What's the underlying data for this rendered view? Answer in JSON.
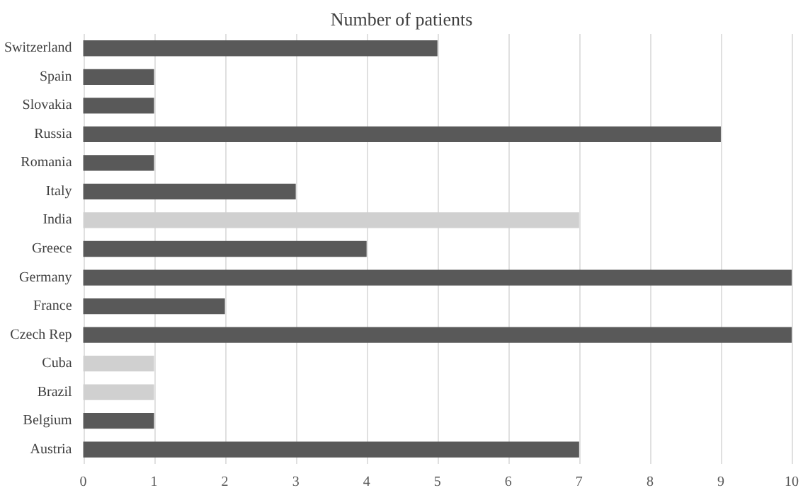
{
  "chart_data": {
    "type": "bar",
    "orientation": "horizontal",
    "title": "Number of patients",
    "categories": [
      "Switzerland",
      "Spain",
      "Slovakia",
      "Russia",
      "Romania",
      "Italy",
      "India",
      "Greece",
      "Germany",
      "France",
      "Czech Rep",
      "Cuba",
      "Brazil",
      "Belgium",
      "Austria"
    ],
    "values": [
      5,
      1,
      1,
      9,
      1,
      3,
      7,
      4,
      10,
      2,
      10,
      1,
      1,
      1,
      7
    ],
    "colors": [
      "#595959",
      "#595959",
      "#595959",
      "#595959",
      "#595959",
      "#595959",
      "#d0d0d0",
      "#595959",
      "#595959",
      "#595959",
      "#595959",
      "#d0d0d0",
      "#d0d0d0",
      "#595959",
      "#595959"
    ],
    "xlim": [
      0,
      10
    ],
    "xticks": [
      0,
      1,
      2,
      3,
      4,
      5,
      6,
      7,
      8,
      9,
      10
    ],
    "grid": "x"
  }
}
